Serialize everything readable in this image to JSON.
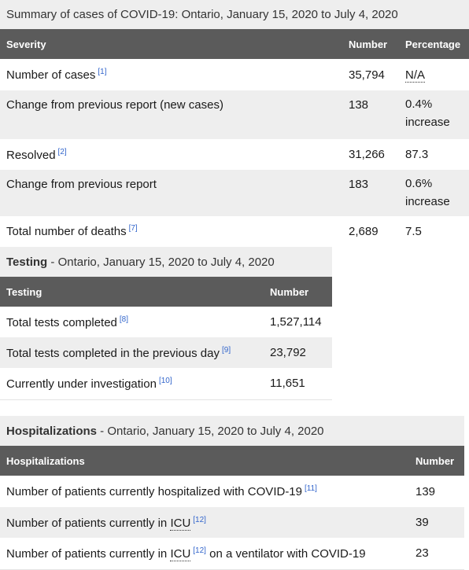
{
  "summary": {
    "caption": "Summary of cases of COVID-19: Ontario, January 15, 2020 to July 4, 2020",
    "headers": {
      "severity": "Severity",
      "number": "Number",
      "percentage": "Percentage"
    },
    "rows": [
      {
        "label": "Number of cases",
        "ref": "[1]",
        "number": "35,794",
        "percentage": "N/A"
      },
      {
        "label": "Change from previous report (new cases)",
        "ref": "",
        "number": "138",
        "percentage": "0.4% increase"
      },
      {
        "label": "Resolved",
        "ref": "[2]",
        "number": "31,266",
        "percentage": "87.3"
      },
      {
        "label": "Change from previous report",
        "ref": "",
        "number": "183",
        "percentage": "0.6% increase"
      },
      {
        "label": "Total number of deaths",
        "ref": "[7]",
        "number": "2,689",
        "percentage": "7.5"
      }
    ]
  },
  "testing": {
    "caption_bold": "Testing",
    "caption_rest": " - Ontario, January 15, 2020 to July 4, 2020",
    "headers": {
      "testing": "Testing",
      "number": "Number"
    },
    "rows": [
      {
        "label": "Total tests completed",
        "ref": "[8]",
        "number": "1,527,114"
      },
      {
        "label": "Total tests completed in the previous day",
        "ref": "[9]",
        "number": "23,792"
      },
      {
        "label": "Currently under investigation",
        "ref": "[10]",
        "number": "11,651"
      }
    ]
  },
  "hospitalizations": {
    "caption_bold": "Hospitalizations",
    "caption_rest": " - Ontario, January 15, 2020 to July 4, 2020",
    "headers": {
      "hospitalizations": "Hospitalizations",
      "number": "Number"
    },
    "rows": [
      {
        "label": "Number of patients currently hospitalized with COVID-19",
        "ref": "[11]",
        "number": "139"
      },
      {
        "label_pre": "Number of patients currently in ",
        "abbr": "ICU",
        "ref": "[12]",
        "number": "39"
      },
      {
        "label_pre": "Number of patients currently in ",
        "abbr": "ICU",
        "ref": "[12]",
        "label_post": " on a ventilator with COVID-19",
        "number": "23"
      }
    ]
  }
}
